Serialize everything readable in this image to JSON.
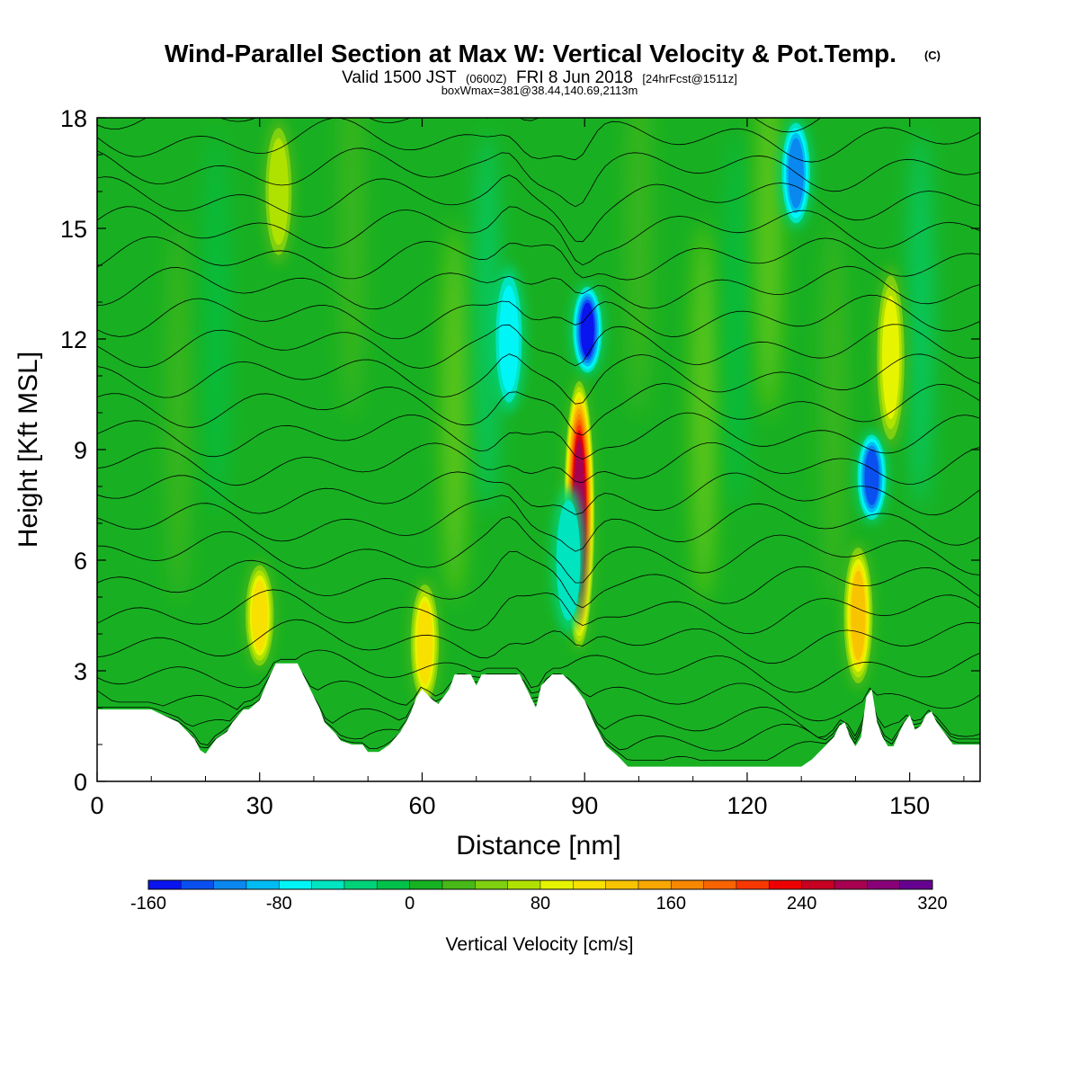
{
  "header": {
    "title": "Wind-Parallel Section at Max W: Vertical Velocity & Pot.Temp.",
    "copyright": "(C)",
    "valid_prefix": "Valid 1500 JST",
    "valid_utc": "(0600Z)",
    "valid_date": "FRI 8 Jun 2018",
    "forecast_info": "[24hrFcst@1511z]",
    "box_info": "boxWmax=381@38.44,140.69,2113m"
  },
  "chart_data": {
    "type": "heatmap",
    "title": "Wind-Parallel Section at Max W: Vertical Velocity & Pot.Temp.",
    "xlabel": "Distance [nm]",
    "ylabel": "Height [Kft MSL]",
    "xlim": [
      0,
      163
    ],
    "ylim": [
      0,
      18
    ],
    "x_ticks": [
      0,
      30,
      60,
      90,
      120,
      150
    ],
    "x_tick_labels": [
      "0",
      "30",
      "60",
      "90",
      "120",
      "150"
    ],
    "y_ticks": [
      0,
      3,
      6,
      9,
      12,
      15,
      18
    ],
    "y_tick_labels": [
      "0",
      "3",
      "6",
      "9",
      "12",
      "15",
      "18"
    ],
    "background_value": 0,
    "updrafts": [
      {
        "x": 89,
        "y_bottom": 3.5,
        "y_top": 11,
        "peak": 260
      },
      {
        "x": 140.5,
        "y_bottom": 2.5,
        "y_top": 6.5,
        "peak": 130
      },
      {
        "x": 30,
        "y_bottom": 3,
        "y_top": 6,
        "peak": 110
      },
      {
        "x": 60.5,
        "y_bottom": 2,
        "y_top": 5.5,
        "peak": 100
      },
      {
        "x": 146.5,
        "y_bottom": 9,
        "y_top": 14,
        "peak": 80
      },
      {
        "x": 33.5,
        "y_bottom": 14,
        "y_top": 18,
        "peak": 60
      }
    ],
    "downdrafts": [
      {
        "x": 90.5,
        "y_bottom": 11,
        "y_top": 13.5,
        "peak": -140
      },
      {
        "x": 143,
        "y_bottom": 7,
        "y_top": 9.5,
        "peak": -120
      },
      {
        "x": 129,
        "y_bottom": 15,
        "y_top": 18,
        "peak": -110
      },
      {
        "x": 76,
        "y_bottom": 10,
        "y_top": 14,
        "peak": -70
      },
      {
        "x": 87,
        "y_bottom": 4,
        "y_top": 8,
        "peak": -50
      }
    ],
    "terrain_kft": [
      [
        0,
        1.95
      ],
      [
        10,
        1.95
      ],
      [
        15,
        1.6
      ],
      [
        18,
        1.15
      ],
      [
        19,
        0.85
      ],
      [
        20,
        0.75
      ],
      [
        22,
        1.15
      ],
      [
        24,
        1.35
      ],
      [
        25,
        1.6
      ],
      [
        27,
        1.95
      ],
      [
        28,
        1.95
      ],
      [
        30,
        2.2
      ],
      [
        32,
        2.9
      ],
      [
        33,
        3.2
      ],
      [
        37,
        3.2
      ],
      [
        38,
        2.9
      ],
      [
        40,
        2.3
      ],
      [
        41,
        2.0
      ],
      [
        42,
        1.6
      ],
      [
        44,
        1.3
      ],
      [
        45,
        1.1
      ],
      [
        47,
        1.0
      ],
      [
        49,
        1.0
      ],
      [
        50,
        0.8
      ],
      [
        52,
        0.8
      ],
      [
        54,
        1.0
      ],
      [
        56,
        1.35
      ],
      [
        57,
        1.6
      ],
      [
        58,
        1.9
      ],
      [
        59,
        2.3
      ],
      [
        60,
        2.5
      ],
      [
        62,
        2.2
      ],
      [
        63,
        2.1
      ],
      [
        65,
        2.5
      ],
      [
        66,
        2.9
      ],
      [
        69,
        2.9
      ],
      [
        70,
        2.6
      ],
      [
        71,
        2.9
      ],
      [
        78,
        2.9
      ],
      [
        80,
        2.3
      ],
      [
        81,
        2.0
      ],
      [
        82,
        2.6
      ],
      [
        84,
        2.9
      ],
      [
        86,
        2.9
      ],
      [
        88,
        2.6
      ],
      [
        90,
        2.2
      ],
      [
        92,
        1.5
      ],
      [
        94,
        0.95
      ],
      [
        96,
        0.7
      ],
      [
        98,
        0.4
      ],
      [
        100,
        0.4
      ],
      [
        130,
        0.4
      ],
      [
        132,
        0.6
      ],
      [
        134,
        0.9
      ],
      [
        136,
        1.2
      ],
      [
        137,
        1.5
      ],
      [
        138,
        1.6
      ],
      [
        139,
        1.2
      ],
      [
        140,
        0.95
      ],
      [
        141,
        1.2
      ],
      [
        142,
        2.3
      ],
      [
        143,
        2.5
      ],
      [
        144,
        1.6
      ],
      [
        145,
        1.2
      ],
      [
        146,
        0.95
      ],
      [
        147,
        0.95
      ],
      [
        148,
        1.3
      ],
      [
        149,
        1.6
      ],
      [
        150,
        1.8
      ],
      [
        151,
        1.4
      ],
      [
        152,
        1.5
      ],
      [
        153,
        1.8
      ],
      [
        154,
        1.9
      ],
      [
        155,
        1.6
      ],
      [
        156,
        1.4
      ],
      [
        157,
        1.2
      ],
      [
        158,
        1.0
      ],
      [
        160,
        1.0
      ],
      [
        163,
        1.0
      ]
    ],
    "theta_contour_heights_kft": [
      0.5,
      1.0,
      1.5,
      2.2,
      3.0,
      3.8,
      4.6,
      5.4,
      6.2,
      7.0,
      7.8,
      8.6,
      9.4,
      10.2,
      11.0,
      11.8,
      12.6,
      13.4,
      14.2,
      15.0,
      15.8,
      16.6,
      17.4,
      18.2
    ],
    "colorbar": {
      "title": "Vertical Velocity [cm/s]",
      "min": -160,
      "max": 320,
      "step": 20,
      "tick_values": [
        -160,
        -80,
        0,
        80,
        160,
        240,
        320
      ],
      "tick_labels": [
        "-160",
        "-80",
        "0",
        "80",
        "160",
        "240",
        "320"
      ],
      "colors": [
        "#0a14ee",
        "#0a50f0",
        "#0a88f0",
        "#00bcf2",
        "#00f6f6",
        "#00e4c0",
        "#00d278",
        "#00c24a",
        "#16b222",
        "#48b818",
        "#7ed010",
        "#b0e200",
        "#e6f400",
        "#f8e000",
        "#f8c400",
        "#f8a800",
        "#f88800",
        "#f86400",
        "#f83800",
        "#ee0000",
        "#c80022",
        "#a80050",
        "#880078",
        "#660090"
      ]
    }
  }
}
